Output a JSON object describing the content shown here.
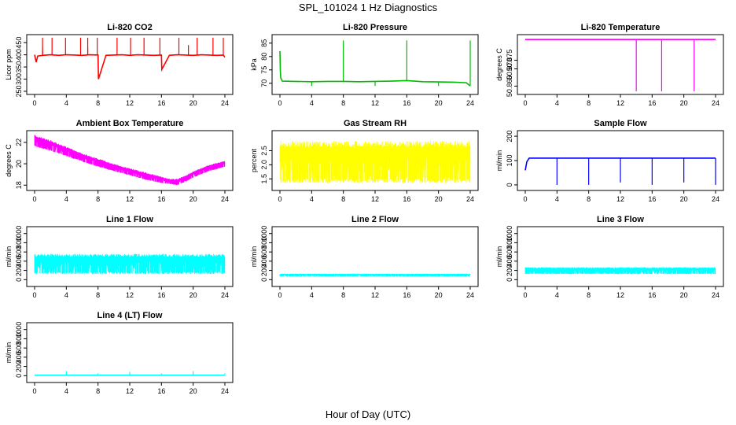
{
  "figure": {
    "title": "SPL_101024  1 Hz Diagnostics",
    "xlabel": "Hour of Day (UTC)"
  },
  "chart_data": [
    {
      "type": "line",
      "title": "Li-820 CO2",
      "ylabel": "Licor ppm",
      "color": "#ff0000",
      "xlim": [
        0,
        24
      ],
      "xticks": [
        "0",
        "4",
        "8",
        "12",
        "16",
        "20",
        "24"
      ],
      "ylim": [
        250,
        470
      ],
      "yticks": [
        "250",
        "300",
        "350",
        "400",
        "450"
      ],
      "series": [
        {
          "x": [
            0,
            0.2,
            0.4,
            1,
            2,
            3,
            4,
            5,
            6,
            7,
            8,
            8.05,
            9,
            10,
            11,
            12,
            13,
            14,
            15,
            16,
            16.05,
            17,
            18,
            19,
            20,
            21,
            22,
            23,
            23.8,
            24
          ],
          "values": [
            400,
            370,
            395,
            398,
            400,
            398,
            400,
            399,
            398,
            400,
            399,
            300,
            398,
            399,
            400,
            398,
            400,
            399,
            398,
            399,
            340,
            398,
            400,
            399,
            398,
            400,
            399,
            398,
            399,
            390
          ]
        }
      ],
      "spikes": [
        {
          "x": 1.0,
          "values": [
            415,
            430,
            470
          ]
        },
        {
          "x": 2.2,
          "values": [
            470
          ]
        },
        {
          "x": 3.9,
          "values": [
            470
          ]
        },
        {
          "x": 5.8,
          "values": [
            470
          ]
        },
        {
          "x": 6.7,
          "values": [
            430,
            470
          ]
        },
        {
          "x": 7.9,
          "values": [
            470
          ]
        },
        {
          "x": 10.4,
          "values": [
            470
          ]
        },
        {
          "x": 12.1,
          "values": [
            470
          ]
        },
        {
          "x": 13.8,
          "values": [
            470
          ]
        },
        {
          "x": 15.8,
          "values": [
            470
          ]
        },
        {
          "x": 18.2,
          "values": [
            470
          ]
        },
        {
          "x": 19.4,
          "values": [
            440
          ]
        },
        {
          "x": 20.5,
          "values": [
            470
          ]
        },
        {
          "x": 22.5,
          "values": [
            470
          ]
        },
        {
          "x": 23.8,
          "values": [
            470
          ]
        }
      ]
    },
    {
      "type": "line",
      "title": "Li-820 Pressure",
      "ylabel": "kPa",
      "color": "#00bb00",
      "xlim": [
        0,
        24
      ],
      "xticks": [
        "0",
        "4",
        "8",
        "12",
        "16",
        "20",
        "24"
      ],
      "ylim": [
        67,
        87
      ],
      "yticks": [
        "70",
        "75",
        "80",
        "85"
      ],
      "series": [
        {
          "x": [
            0,
            0.05,
            0.1,
            0.3,
            2,
            4,
            6,
            8,
            10,
            12,
            14,
            16,
            17,
            18,
            20,
            22,
            23.5,
            24
          ],
          "values": [
            82,
            75,
            72,
            70.8,
            70.7,
            70.6,
            70.7,
            70.7,
            70.6,
            70.7,
            70.8,
            71.0,
            70.8,
            70.6,
            70.5,
            70.4,
            70.2,
            69.0
          ]
        }
      ],
      "spikes": [
        {
          "x": 4.0,
          "values": [
            69
          ]
        },
        {
          "x": 8.0,
          "values": [
            86
          ]
        },
        {
          "x": 12.0,
          "values": [
            69
          ]
        },
        {
          "x": 16.0,
          "values": [
            86
          ]
        },
        {
          "x": 20.0,
          "values": [
            69
          ]
        },
        {
          "x": 24.0,
          "values": [
            86
          ]
        }
      ]
    },
    {
      "type": "line",
      "title": "Li-820 Temperature",
      "ylabel": "degrees C",
      "color": "#ff00ff",
      "xlim": [
        0,
        24
      ],
      "xticks": [
        "0",
        "4",
        "8",
        "12",
        "16",
        "20",
        "24"
      ],
      "ylim": [
        50.857,
        50.888
      ],
      "yticks": [
        "50.860",
        "50.870",
        "50.875"
      ],
      "series": [
        {
          "x": [
            0,
            24
          ],
          "values": [
            50.887,
            50.887
          ]
        }
      ],
      "spikes": [
        {
          "x": 14.0,
          "values": [
            50.857
          ]
        },
        {
          "x": 17.2,
          "values": [
            50.857
          ]
        },
        {
          "x": 21.3,
          "values": [
            50.857
          ]
        }
      ]
    },
    {
      "type": "area",
      "title": "Ambient Box Temperature",
      "ylabel": "degrees C",
      "color": "#ff00ff",
      "xlim": [
        0,
        24
      ],
      "xticks": [
        "0",
        "4",
        "8",
        "12",
        "16",
        "20",
        "24"
      ],
      "ylim": [
        17.8,
        22.8
      ],
      "yticks": [
        "18",
        "20",
        "22"
      ],
      "series": [
        {
          "x": [
            0,
            2,
            4,
            6,
            8,
            10,
            12,
            14,
            16,
            17,
            18,
            19,
            20,
            22,
            24
          ],
          "values": [
            22.7,
            22.2,
            21.6,
            21.0,
            20.5,
            20.0,
            19.6,
            19.2,
            18.8,
            18.6,
            18.6,
            18.9,
            19.3,
            19.9,
            20.3
          ],
          "name": ""
        },
        {
          "x": [
            0,
            2,
            4,
            6,
            8,
            10,
            12,
            14,
            16,
            17,
            18,
            19,
            20,
            22,
            24
          ],
          "values": [
            21.6,
            21.2,
            20.7,
            20.2,
            19.7,
            19.3,
            18.9,
            18.5,
            18.2,
            18.1,
            18.0,
            18.3,
            18.7,
            19.3,
            19.7
          ],
          "name": ""
        }
      ]
    },
    {
      "type": "area",
      "title": "Gas Stream RH",
      "ylabel": "percent",
      "color": "#ffff00",
      "xlim": [
        0,
        24
      ],
      "xticks": [
        "0",
        "4",
        "8",
        "12",
        "16",
        "20",
        "24"
      ],
      "ylim": [
        1.2,
        3.1
      ],
      "yticks": [
        "1.5",
        "2.0",
        "2.5"
      ],
      "series": [
        {
          "x": [
            0,
            24
          ],
          "values": [
            2.85,
            2.85
          ],
          "name": ""
        },
        {
          "x": [
            0,
            24
          ],
          "values": [
            1.35,
            1.35
          ],
          "name": ""
        }
      ]
    },
    {
      "type": "line",
      "title": "Sample Flow",
      "ylabel": "ml/min",
      "color": "#0000ff",
      "xlim": [
        0,
        24
      ],
      "xticks": [
        "0",
        "4",
        "8",
        "12",
        "16",
        "20",
        "24"
      ],
      "ylim": [
        -10,
        210
      ],
      "yticks": [
        "0",
        "100",
        "200"
      ],
      "series": [
        {
          "x": [
            0,
            0.2,
            0.5,
            24
          ],
          "values": [
            60,
            95,
            110,
            110
          ]
        }
      ],
      "spikes": [
        {
          "x": 4.0,
          "values": [
            0
          ]
        },
        {
          "x": 8.0,
          "values": [
            0
          ]
        },
        {
          "x": 12.0,
          "values": [
            10
          ]
        },
        {
          "x": 16.0,
          "values": [
            0
          ]
        },
        {
          "x": 20.0,
          "values": [
            10
          ]
        },
        {
          "x": 24.0,
          "values": [
            0
          ]
        }
      ]
    },
    {
      "type": "area",
      "title": "Line 1 Flow",
      "ylabel": "ml/min",
      "color": "#00ffff",
      "xlim": [
        0,
        24
      ],
      "xticks": [
        "0",
        "4",
        "8",
        "12",
        "16",
        "20",
        "24"
      ],
      "ylim": [
        -80,
        1080
      ],
      "yticks": [
        "0",
        "200",
        "400",
        "600",
        "800",
        "1000"
      ],
      "series": [
        {
          "x": [
            0,
            24
          ],
          "values": [
            560,
            560
          ],
          "name": ""
        },
        {
          "x": [
            0,
            24
          ],
          "values": [
            120,
            120
          ],
          "name": ""
        }
      ]
    },
    {
      "type": "area",
      "title": "Line 2 Flow",
      "ylabel": "ml/min",
      "color": "#00ffff",
      "xlim": [
        0,
        24
      ],
      "xticks": [
        "0",
        "4",
        "8",
        "12",
        "16",
        "20",
        "24"
      ],
      "ylim": [
        -80,
        1080
      ],
      "yticks": [
        "0",
        "200",
        "400",
        "600",
        "800",
        "1000"
      ],
      "series": [
        {
          "x": [
            0,
            24
          ],
          "values": [
            130,
            130
          ],
          "name": ""
        },
        {
          "x": [
            0,
            24
          ],
          "values": [
            70,
            70
          ],
          "name": ""
        }
      ]
    },
    {
      "type": "area",
      "title": "Line 3 Flow",
      "ylabel": "ml/min",
      "color": "#00ffff",
      "xlim": [
        0,
        24
      ],
      "xticks": [
        "0",
        "4",
        "8",
        "12",
        "16",
        "20",
        "24"
      ],
      "ylim": [
        -80,
        1080
      ],
      "yticks": [
        "0",
        "200",
        "400",
        "600",
        "800",
        "1000"
      ],
      "series": [
        {
          "x": [
            0,
            24
          ],
          "values": [
            270,
            270
          ],
          "name": ""
        },
        {
          "x": [
            0,
            24
          ],
          "values": [
            120,
            120
          ],
          "name": ""
        }
      ]
    },
    {
      "type": "line",
      "title": "Line 4 (LT) Flow",
      "ylabel": "ml/min",
      "color": "#00ffff",
      "xlim": [
        0,
        24
      ],
      "xticks": [
        "0",
        "4",
        "8",
        "12",
        "16",
        "20",
        "24"
      ],
      "ylim": [
        -80,
        1080
      ],
      "yticks": [
        "0",
        "200",
        "400",
        "600",
        "800",
        "1000"
      ],
      "series": [
        {
          "x": [
            0,
            24
          ],
          "values": [
            10,
            10
          ]
        }
      ],
      "spikes": [
        {
          "x": 4.0,
          "values": [
            100
          ]
        },
        {
          "x": 8.0,
          "values": [
            50
          ]
        },
        {
          "x": 12.0,
          "values": [
            80
          ]
        },
        {
          "x": 16.0,
          "values": [
            50
          ]
        },
        {
          "x": 20.0,
          "values": [
            100
          ]
        },
        {
          "x": 24.0,
          "values": [
            50
          ]
        }
      ]
    }
  ]
}
